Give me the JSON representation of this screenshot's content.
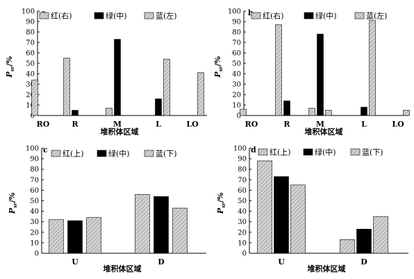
{
  "colors": {
    "hatched": "#c8c8c8",
    "black": "#000000",
    "axis": "#000000"
  },
  "chart_data": [
    {
      "type": "bar",
      "panel_label": "a",
      "categories": [
        "RO",
        "R",
        "M",
        "L",
        "LO"
      ],
      "series": [
        {
          "name": "红(右)",
          "values": [
            34,
            55,
            7,
            0,
            0
          ],
          "fill": "hatched"
        },
        {
          "name": "绿(中)",
          "values": [
            0,
            5,
            73,
            16,
            0
          ],
          "fill": "black"
        },
        {
          "name": "蓝(左)",
          "values": [
            0,
            0,
            0,
            54,
            41
          ],
          "fill": "hatched"
        }
      ],
      "xlabel": "堆积体区域",
      "ylabel": "P",
      "ylabel_sub": "sr",
      "ylabel_suffix": "/%",
      "ylim": [
        0,
        100
      ],
      "yticks": [
        0,
        10,
        20,
        30,
        40,
        50,
        60,
        70,
        80,
        90,
        100
      ],
      "legend_position": "top"
    },
    {
      "type": "bar",
      "panel_label": "b",
      "categories": [
        "RO",
        "R",
        "M",
        "L",
        "LO"
      ],
      "series": [
        {
          "name": "红(右)",
          "values": [
            6,
            87,
            7,
            0,
            0
          ],
          "fill": "hatched"
        },
        {
          "name": "绿(中)",
          "values": [
            0,
            14,
            78,
            8,
            0
          ],
          "fill": "black"
        },
        {
          "name": "蓝(左)",
          "values": [
            0,
            0,
            5,
            91,
            5
          ],
          "fill": "hatched"
        }
      ],
      "xlabel": "堆积体区域",
      "ylabel": "P",
      "ylabel_sub": "sr",
      "ylabel_suffix": "/%",
      "ylim": [
        0,
        100
      ],
      "yticks": [
        0,
        10,
        20,
        30,
        40,
        50,
        60,
        70,
        80,
        90,
        100
      ],
      "legend_position": "top"
    },
    {
      "type": "bar",
      "panel_label": "c",
      "categories": [
        "U",
        "D"
      ],
      "series": [
        {
          "name": "红(上)",
          "values": [
            32,
            56
          ],
          "fill": "hatched"
        },
        {
          "name": "绿(中)",
          "values": [
            31,
            54
          ],
          "fill": "black"
        },
        {
          "name": "蓝(下)",
          "values": [
            34,
            43
          ],
          "fill": "hatched"
        }
      ],
      "xlabel": "堆积体区域",
      "ylabel": "P",
      "ylabel_sub": "sr",
      "ylabel_suffix": "/%",
      "ylim": [
        0,
        100
      ],
      "yticks": [
        0,
        10,
        20,
        30,
        40,
        50,
        60,
        70,
        80,
        90,
        100
      ],
      "legend_position": "top"
    },
    {
      "type": "bar",
      "panel_label": "d",
      "categories": [
        "U",
        "D"
      ],
      "series": [
        {
          "name": "红(上)",
          "values": [
            88,
            13
          ],
          "fill": "hatched"
        },
        {
          "name": "绿(中)",
          "values": [
            73,
            23
          ],
          "fill": "black"
        },
        {
          "name": "蓝(下)",
          "values": [
            65,
            35
          ],
          "fill": "hatched"
        }
      ],
      "xlabel": "堆积体区域",
      "ylabel": "P",
      "ylabel_sub": "sr",
      "ylabel_suffix": "/%",
      "ylim": [
        0,
        100
      ],
      "yticks": [
        0,
        10,
        20,
        30,
        40,
        50,
        60,
        70,
        80,
        90,
        100
      ],
      "legend_position": "top"
    }
  ]
}
